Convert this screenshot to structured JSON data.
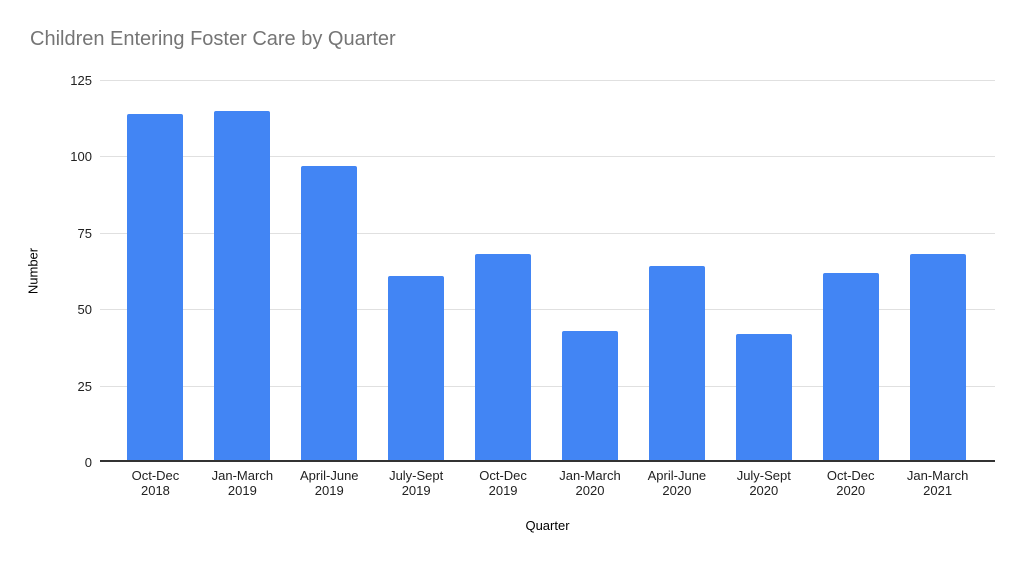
{
  "chart_data": {
    "type": "bar",
    "title": "Children Entering Foster Care by Quarter",
    "xlabel": "Quarter",
    "ylabel": "Number",
    "categories": [
      "Oct-Dec 2018",
      "Jan-March 2019",
      "April-June 2019",
      "July-Sept 2019",
      "Oct-Dec 2019",
      "Jan-March 2020",
      "April-June 2020",
      "July-Sept 2020",
      "Oct-Dec 2020",
      "Jan-March 2021"
    ],
    "values": [
      114,
      115,
      97,
      61,
      68,
      43,
      64,
      42,
      62,
      68
    ],
    "ylim": [
      0,
      125
    ],
    "yticks": [
      0,
      25,
      50,
      75,
      100,
      125
    ],
    "grid": true,
    "legend": "none",
    "colors": {
      "bar": "#4285F4",
      "title": "#757575",
      "grid": "#E0E0E0",
      "axis": "#333333",
      "tick_label": "#222222"
    }
  }
}
